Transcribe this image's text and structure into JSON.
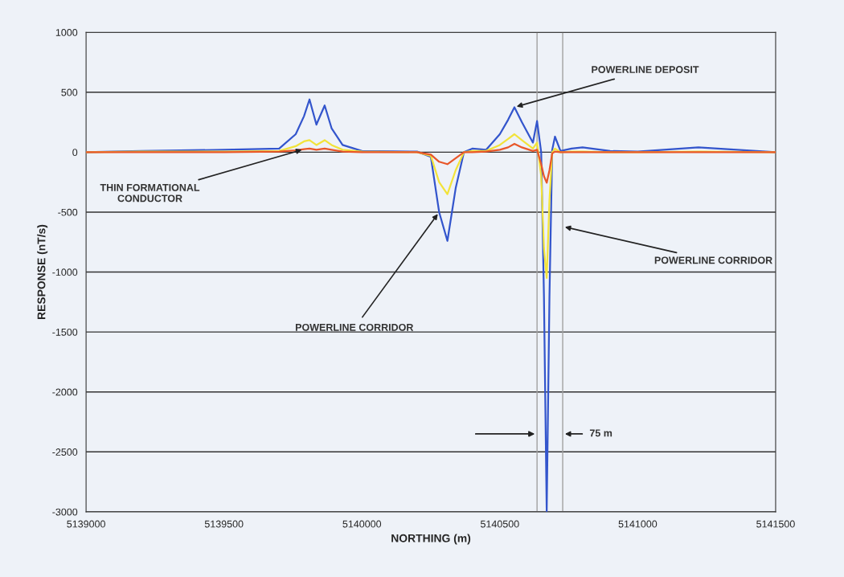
{
  "chart_data": {
    "type": "line",
    "xlabel": "NORTHING (m)",
    "ylabel": "RESPONSE (nT/s)",
    "x": [
      5139000,
      5139200,
      5139500,
      5139700,
      5139760,
      5139790,
      5139810,
      5139835,
      5139865,
      5139890,
      5139930,
      5140000,
      5140200,
      5140250,
      5140280,
      5140310,
      5140340,
      5140370,
      5140400,
      5140450,
      5140500,
      5140530,
      5140553,
      5140580,
      5140620,
      5140635,
      5140650,
      5140660,
      5140670,
      5140680,
      5140690,
      5140700,
      5140720,
      5140760,
      5140800,
      5140900,
      5141000,
      5141220,
      5141500
    ],
    "series": [
      {
        "color": "#3355cc",
        "values": [
          0,
          10,
          20,
          30,
          150,
          300,
          440,
          230,
          390,
          200,
          60,
          10,
          5,
          -40,
          -500,
          -740,
          -300,
          0,
          30,
          20,
          150,
          270,
          375,
          250,
          80,
          260,
          0,
          -1200,
          -3000,
          -1200,
          20,
          130,
          10,
          30,
          40,
          10,
          5,
          40,
          0
        ]
      },
      {
        "color": "#f2e33a",
        "values": [
          0,
          5,
          5,
          10,
          50,
          90,
          100,
          60,
          100,
          60,
          20,
          5,
          0,
          -30,
          -250,
          -350,
          -150,
          0,
          10,
          10,
          60,
          110,
          150,
          100,
          30,
          80,
          -200,
          -800,
          -1050,
          -400,
          0,
          30,
          0,
          5,
          5,
          0,
          0,
          5,
          0
        ]
      },
      {
        "color": "#e8572a",
        "values": [
          0,
          0,
          0,
          5,
          15,
          25,
          30,
          20,
          30,
          20,
          5,
          0,
          0,
          -20,
          -80,
          -100,
          -50,
          0,
          0,
          5,
          20,
          40,
          70,
          40,
          10,
          20,
          -100,
          -200,
          -255,
          -150,
          -10,
          5,
          0,
          0,
          0,
          0,
          0,
          0,
          0
        ]
      }
    ],
    "xlim": [
      5139000,
      5141500
    ],
    "xticks": [
      5139000,
      5139500,
      5140000,
      5140500,
      5141000,
      5141500
    ],
    "ylim": [
      -3000,
      1000
    ],
    "yticks": [
      -3000,
      -2500,
      -2000,
      -1500,
      -1000,
      -500,
      0,
      500,
      1000
    ],
    "grid": "y",
    "legend": false,
    "marker": "none",
    "line_style": "solid",
    "ref_lines": [
      {
        "axis": "x",
        "value": 5140635,
        "color": "#a0a0a0"
      },
      {
        "axis": "x",
        "value": 5140728,
        "color": "#a0a0a0"
      }
    ],
    "annotations": [
      {
        "text": "POWERLINE DEPOSIT",
        "x": 5140553,
        "y": 375
      },
      {
        "text": "THIN FORMATIONAL\nCONDUCTOR",
        "x": 5139790,
        "y": 25
      },
      {
        "text": "POWERLINE CORRIDOR",
        "x": 5140280,
        "y": -500
      },
      {
        "text": "POWERLINE CORRIDOR",
        "x": 5140728,
        "y": -620
      },
      {
        "text": "75 m",
        "x": 5140728,
        "y": -2350
      }
    ]
  }
}
